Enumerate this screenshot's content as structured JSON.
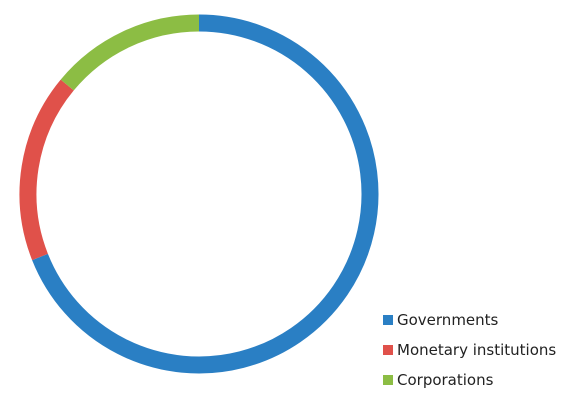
{
  "chart_data": {
    "type": "pie",
    "style": "donut",
    "legend_position": "bottom-right",
    "slices": [
      {
        "label": "Governments",
        "value": 69,
        "color": "#2a7fc4"
      },
      {
        "label": "Monetary institutions",
        "value": 17,
        "color": "#e0514a"
      },
      {
        "label": "Corporations",
        "value": 14,
        "color": "#8cbd44"
      }
    ]
  }
}
